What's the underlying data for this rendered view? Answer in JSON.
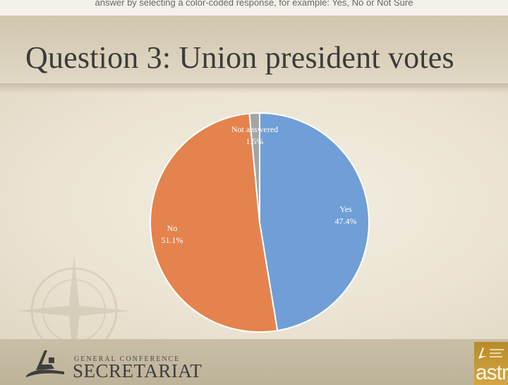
{
  "slide": {
    "title": "Question 3: Union president votes",
    "top_fragment": "answer by selecting a color-coded response, for example: Yes, No or Not Sure"
  },
  "footer": {
    "logo_small": "GENERAL CONFERENCE",
    "logo_big": "SECRETARIAT",
    "badge_text": "astr"
  },
  "chart_data": {
    "type": "pie",
    "title": "",
    "start": "12 o'clock, clockwise",
    "slices": [
      {
        "label": "Yes",
        "percent_label": "47.4%",
        "value": 47.4,
        "color": "#6f9fd6"
      },
      {
        "label": "No",
        "percent_label": "51.1%",
        "value": 51.1,
        "color": "#e4834d"
      },
      {
        "label": "Not answered",
        "percent_label": "1.5%",
        "value": 1.5,
        "color": "#a5a5a5"
      }
    ],
    "legend": "none (labels on slices)"
  },
  "colors": {
    "title_text": "#3b3b38",
    "slice_border": "#ffffff",
    "label_text": "#ffffff",
    "badge": "#c99a3a"
  }
}
